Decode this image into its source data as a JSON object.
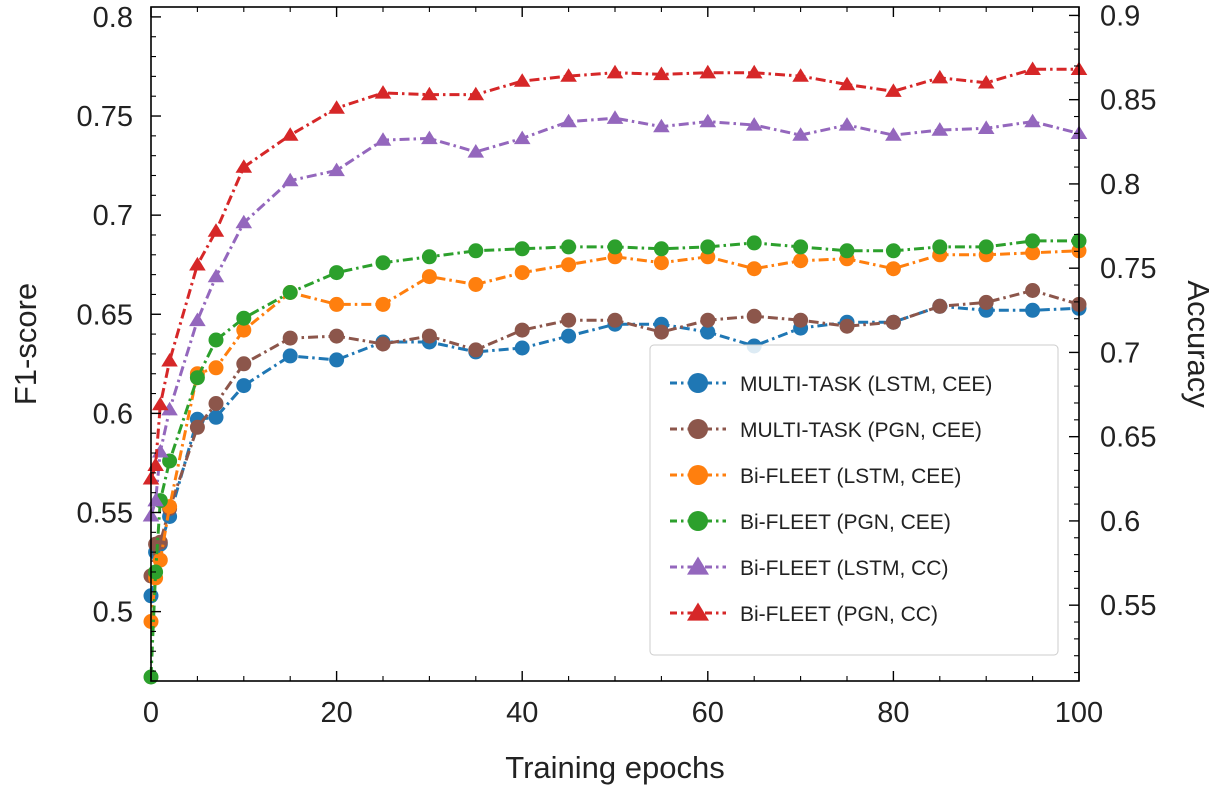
{
  "chart_data": {
    "type": "line",
    "title": "",
    "xlabel": "Training epochs",
    "ylabel": "F1-score",
    "y2label": "Accuracy",
    "xlim": [
      0,
      100
    ],
    "ylim": [
      0.465,
      0.805
    ],
    "y2lim": [
      0.505,
      0.905
    ],
    "xticks": [
      "0",
      "20",
      "40",
      "60",
      "80",
      "100"
    ],
    "yticks": [
      "0.5",
      "0.55",
      "0.6",
      "0.65",
      "0.7",
      "0.75",
      "0.8"
    ],
    "y2ticks": [
      "0.55",
      "0.6",
      "0.65",
      "0.7",
      "0.75",
      "0.8",
      "0.85",
      "0.9"
    ],
    "grid": false,
    "legend_position": "center-right",
    "series": [
      {
        "name": "MULTI-TASK (LSTM, CEE)",
        "color": "#1f77b4",
        "marker": "circle",
        "linestyle": "dashdot",
        "axis": "F1-score",
        "x": [
          0,
          0.5,
          1,
          2,
          5,
          7,
          10,
          15,
          20,
          25,
          30,
          35,
          40,
          45,
          50,
          55,
          60,
          65,
          70,
          75,
          80,
          85,
          90,
          95,
          100
        ],
        "y": [
          0.508,
          0.53,
          0.534,
          0.548,
          0.597,
          0.598,
          0.614,
          0.629,
          0.627,
          0.636,
          0.636,
          0.631,
          0.633,
          0.639,
          0.645,
          0.645,
          0.641,
          0.634,
          0.643,
          0.646,
          0.646,
          0.654,
          0.652,
          0.652,
          0.653
        ]
      },
      {
        "name": "MULTI-TASK (PGN, CEE)",
        "color": "#8c564b",
        "marker": "circle",
        "linestyle": "dashdot",
        "axis": "F1-score",
        "x": [
          0,
          0.5,
          1,
          2,
          5,
          7,
          10,
          15,
          20,
          25,
          30,
          35,
          40,
          45,
          50,
          55,
          60,
          65,
          70,
          75,
          80,
          85,
          90,
          95,
          100
        ],
        "y": [
          0.518,
          0.534,
          0.535,
          0.552,
          0.593,
          0.605,
          0.625,
          0.638,
          0.639,
          0.635,
          0.639,
          0.632,
          0.642,
          0.647,
          0.647,
          0.641,
          0.647,
          0.649,
          0.647,
          0.644,
          0.646,
          0.654,
          0.656,
          0.662,
          0.655
        ]
      },
      {
        "name": "Bi-FLEET (LSTM, CEE)",
        "color": "#ff7f0e",
        "marker": "circle",
        "linestyle": "dashdot",
        "axis": "F1-score",
        "x": [
          0,
          0.5,
          1,
          2,
          5,
          7,
          10,
          15,
          20,
          25,
          30,
          35,
          40,
          45,
          50,
          55,
          60,
          65,
          70,
          75,
          80,
          85,
          90,
          95,
          100
        ],
        "y": [
          0.495,
          0.517,
          0.526,
          0.553,
          0.62,
          0.623,
          0.642,
          0.661,
          0.655,
          0.655,
          0.669,
          0.665,
          0.671,
          0.675,
          0.679,
          0.676,
          0.679,
          0.673,
          0.677,
          0.678,
          0.673,
          0.68,
          0.68,
          0.681,
          0.682
        ]
      },
      {
        "name": "Bi-FLEET (PGN, CEE)",
        "color": "#2ca02c",
        "marker": "circle",
        "linestyle": "dashdot",
        "axis": "F1-score",
        "x": [
          0,
          0.5,
          1,
          2,
          5,
          7,
          10,
          15,
          20,
          25,
          30,
          35,
          40,
          45,
          50,
          55,
          60,
          65,
          70,
          75,
          80,
          85,
          90,
          95,
          100
        ],
        "y": [
          0.467,
          0.52,
          0.556,
          0.576,
          0.618,
          0.637,
          0.648,
          0.661,
          0.671,
          0.676,
          0.679,
          0.682,
          0.683,
          0.684,
          0.684,
          0.683,
          0.684,
          0.686,
          0.684,
          0.682,
          0.682,
          0.684,
          0.684,
          0.687,
          0.687
        ]
      },
      {
        "name": "Bi-FLEET (LSTM, CC)",
        "color": "#9467bd",
        "marker": "triangle",
        "linestyle": "dashdot",
        "axis": "Accuracy",
        "x": [
          0,
          0.5,
          1,
          2,
          5,
          7,
          10,
          15,
          20,
          25,
          30,
          35,
          40,
          45,
          50,
          55,
          60,
          65,
          70,
          75,
          80,
          85,
          90,
          95,
          100
        ],
        "y": [
          0.603,
          0.612,
          0.641,
          0.666,
          0.719,
          0.745,
          0.777,
          0.802,
          0.808,
          0.826,
          0.827,
          0.819,
          0.827,
          0.837,
          0.839,
          0.834,
          0.837,
          0.835,
          0.829,
          0.835,
          0.829,
          0.832,
          0.833,
          0.837,
          0.83
        ]
      },
      {
        "name": "Bi-FLEET (PGN, CC)",
        "color": "#d62728",
        "marker": "triangle",
        "linestyle": "dashdot",
        "axis": "Accuracy",
        "x": [
          0,
          0.5,
          1,
          2,
          5,
          7,
          10,
          15,
          20,
          25,
          30,
          35,
          40,
          45,
          50,
          55,
          60,
          65,
          70,
          75,
          80,
          85,
          90,
          95,
          100
        ],
        "y": [
          0.625,
          0.633,
          0.669,
          0.695,
          0.752,
          0.772,
          0.81,
          0.829,
          0.845,
          0.854,
          0.853,
          0.853,
          0.861,
          0.864,
          0.866,
          0.865,
          0.866,
          0.866,
          0.864,
          0.859,
          0.855,
          0.863,
          0.86,
          0.868,
          0.868
        ]
      }
    ]
  }
}
